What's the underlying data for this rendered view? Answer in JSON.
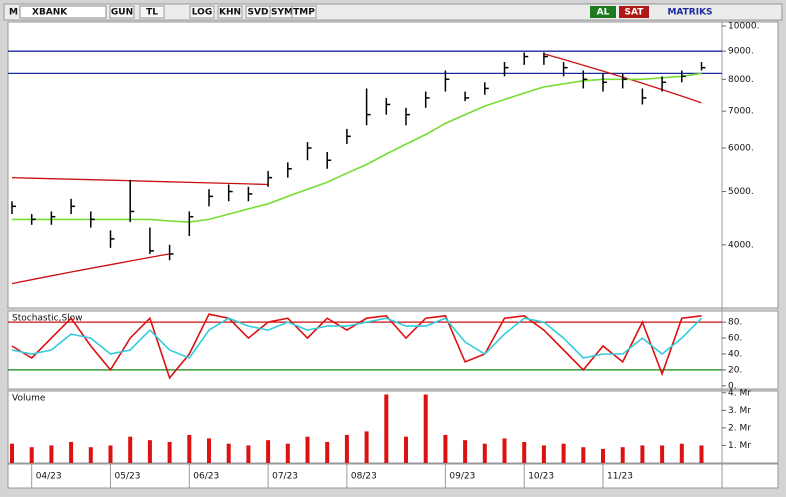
{
  "toolbar": {
    "menu": "M",
    "symbol": "XBANK",
    "buttons": [
      "GUN",
      "TL",
      "LOG",
      "KHN",
      "SVD",
      "SYM",
      "TMP"
    ],
    "buy": "AL",
    "sell": "SAT",
    "brand": "MATRIKS"
  },
  "chart_data": [
    {
      "type": "ohlc",
      "color": "#000000",
      "log_scale": true,
      "high": [
        4800,
        4550,
        4600,
        4850,
        4600,
        4250,
        5250,
        4300,
        4000,
        4600,
        5050,
        5150,
        5100,
        5450,
        5650,
        6150,
        5900,
        6500,
        7700,
        7400,
        7100,
        7600,
        8300,
        7600,
        7900,
        8600,
        8950,
        8950,
        8600,
        8300,
        8200,
        8200,
        7700,
        8100,
        8300,
        8600
      ],
      "low": [
        4550,
        4350,
        4350,
        4550,
        4300,
        3950,
        4400,
        3850,
        3750,
        4150,
        4700,
        4800,
        4800,
        5100,
        5300,
        5700,
        5500,
        6100,
        6600,
        6900,
        6600,
        7100,
        7600,
        7300,
        7500,
        8100,
        8500,
        8500,
        8100,
        7700,
        7600,
        7700,
        7200,
        7600,
        7900,
        8300
      ],
      "close": [
        4700,
        4450,
        4500,
        4700,
        4450,
        4100,
        4600,
        3900,
        3850,
        4500,
        4900,
        5000,
        4950,
        5300,
        5500,
        6000,
        5700,
        6300,
        6900,
        7200,
        6900,
        7400,
        8000,
        7400,
        7700,
        8400,
        8800,
        8800,
        8400,
        8000,
        7900,
        8000,
        7400,
        7900,
        8100,
        8400
      ],
      "moving_average": {
        "color": "#77dd33",
        "values": [
          4450,
          4450,
          4450,
          4450,
          4450,
          4450,
          4450,
          4450,
          4420,
          4400,
          4450,
          4550,
          4650,
          4750,
          4900,
          5050,
          5200,
          5400,
          5600,
          5850,
          6100,
          6350,
          6650,
          6900,
          7150,
          7350,
          7550,
          7750,
          7850,
          7950,
          8000,
          8000,
          8000,
          8050,
          8100,
          8200
        ]
      },
      "levels": [
        {
          "value": 9000,
          "color": "#1a2a9c"
        },
        {
          "value": 8200,
          "color": "#1a2a9c"
        }
      ],
      "trend_lines": [
        {
          "color": "#cc1111",
          "values": [
            5300,
            5288,
            5277,
            5265,
            5254,
            5242,
            5231,
            5219,
            5208,
            5196,
            5185,
            5173,
            5162,
            5150,
            null,
            null,
            null,
            null,
            null,
            null,
            null,
            null,
            null,
            null,
            null,
            null,
            null,
            null,
            null,
            null,
            null,
            null,
            null,
            null,
            null,
            null
          ]
        },
        {
          "color": "#cc1111",
          "values": [
            3400,
            3456,
            3513,
            3569,
            3625,
            3681,
            3738,
            3794,
            3850,
            null,
            null,
            null,
            null,
            null,
            null,
            null,
            null,
            null,
            null,
            null,
            null,
            null,
            null,
            null,
            null,
            null,
            null,
            null,
            null,
            null,
            null,
            null,
            null,
            null,
            null,
            null
          ]
        },
        {
          "color": "#cc1111",
          "values": [
            null,
            null,
            null,
            null,
            null,
            null,
            null,
            null,
            null,
            null,
            null,
            null,
            null,
            null,
            null,
            null,
            null,
            null,
            null,
            null,
            null,
            null,
            null,
            null,
            null,
            null,
            null,
            8900,
            8694,
            8488,
            8281,
            8075,
            7869,
            7663,
            7456,
            7250
          ]
        }
      ],
      "ylim": [
        3070,
        10170
      ],
      "yticks": [
        {
          "value": 4000,
          "label": "4000."
        },
        {
          "value": 5000,
          "label": "5000."
        },
        {
          "value": 6000,
          "label": "6000."
        },
        {
          "value": 7000,
          "label": "7000."
        },
        {
          "value": 8000,
          "label": "8000."
        },
        {
          "value": 9000,
          "label": "9000."
        },
        {
          "value": 10000,
          "label": "10000."
        }
      ]
    },
    {
      "type": "line",
      "title": "Stochastic,Slow",
      "series": [
        {
          "name": "%K",
          "color": "#dd1111",
          "values": [
            50,
            35,
            60,
            85,
            50,
            20,
            60,
            85,
            10,
            40,
            90,
            85,
            60,
            80,
            85,
            60,
            85,
            70,
            85,
            88,
            60,
            85,
            88,
            30,
            40,
            85,
            88,
            70,
            45,
            20,
            50,
            30,
            80,
            15,
            85,
            88
          ]
        },
        {
          "name": "%D",
          "color": "#33ccdd",
          "values": [
            45,
            40,
            45,
            65,
            60,
            40,
            45,
            70,
            45,
            35,
            70,
            85,
            75,
            70,
            80,
            70,
            75,
            75,
            80,
            85,
            75,
            75,
            85,
            55,
            40,
            65,
            85,
            80,
            60,
            35,
            40,
            40,
            60,
            40,
            60,
            85
          ]
        }
      ],
      "levels": [
        {
          "value": 80,
          "color": "#cc1111"
        },
        {
          "value": 20,
          "color": "#118811"
        }
      ],
      "ylim": [
        -4,
        94
      ],
      "yticks": [
        {
          "value": 0,
          "label": "0."
        },
        {
          "value": 20,
          "label": "20."
        },
        {
          "value": 40,
          "label": "40."
        },
        {
          "value": 60,
          "label": "60."
        },
        {
          "value": 80,
          "label": "80."
        }
      ]
    },
    {
      "type": "bar",
      "title": "Volume",
      "color": "#dd1111",
      "categories": [
        null,
        "04/23",
        null,
        null,
        null,
        "05/23",
        null,
        null,
        null,
        "06/23",
        null,
        null,
        null,
        "07/23",
        null,
        null,
        null,
        "08/23",
        null,
        null,
        null,
        null,
        "09/23",
        null,
        null,
        null,
        "10/23",
        null,
        null,
        null,
        "11/23",
        null,
        null,
        null,
        null,
        null
      ],
      "values": [
        1.1,
        0.9,
        1.0,
        1.2,
        0.9,
        1.0,
        1.5,
        1.3,
        1.2,
        1.6,
        1.4,
        1.1,
        1.0,
        1.3,
        1.1,
        1.5,
        1.2,
        1.6,
        1.8,
        3.9,
        1.5,
        3.9,
        1.6,
        1.3,
        1.1,
        1.4,
        1.2,
        1.0,
        1.1,
        0.9,
        0.8,
        0.9,
        1.0,
        1.0,
        1.1,
        1.0
      ],
      "ylim": [
        0,
        4.1
      ],
      "yticks": [
        {
          "value": 1,
          "label": "1. Mr"
        },
        {
          "value": 2,
          "label": "2. Mr"
        },
        {
          "value": 3,
          "label": "3. Mr"
        },
        {
          "value": 4,
          "label": "4. Mr"
        }
      ]
    }
  ]
}
